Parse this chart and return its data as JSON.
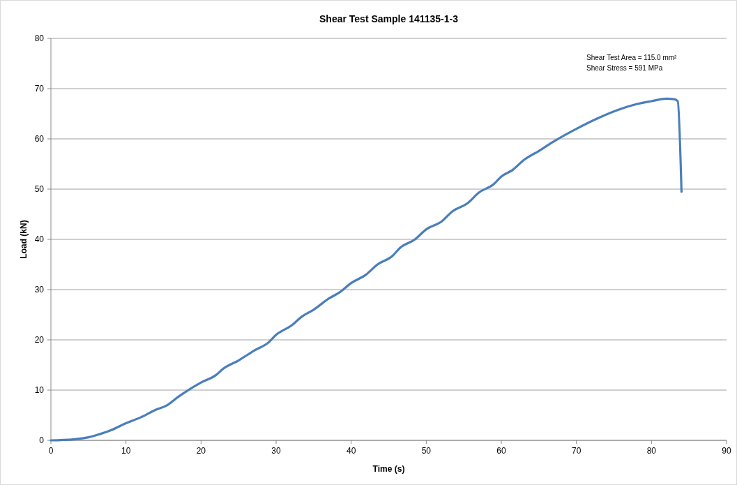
{
  "chart_data": {
    "type": "line",
    "title": "Shear Test Sample 141135-1-3",
    "xlabel": "Time (s)",
    "ylabel": "Load (kN)",
    "annotations": [
      "Shear Test Area = 115.0 mm²",
      "Shear Stress = 591 MPa"
    ],
    "xlim": [
      0,
      90
    ],
    "xticks": [
      0,
      10,
      20,
      30,
      40,
      50,
      60,
      70,
      80,
      90
    ],
    "ylim": [
      0,
      80
    ],
    "yticks": [
      0,
      10,
      20,
      30,
      40,
      50,
      60,
      70,
      80
    ],
    "grid": "y",
    "marker": "none",
    "line_style": "solid",
    "series": [
      {
        "color": "#4a7ebb",
        "x": [
          0,
          3,
          5,
          6,
          8,
          10,
          12,
          14,
          15.5,
          17,
          18,
          20,
          22,
          23,
          25,
          27,
          29,
          30,
          32,
          33.5,
          35,
          37,
          38.5,
          40,
          42,
          43.5,
          45.5,
          46.5,
          48.5,
          50,
          52,
          53.5,
          55.5,
          57,
          59,
          60,
          61.5,
          63,
          65,
          67,
          70,
          73,
          76,
          78,
          80,
          82,
          83,
          83.5,
          84
        ],
        "values": [
          0,
          0.2,
          0.6,
          1.0,
          2.0,
          3.4,
          4.6,
          6.1,
          7.0,
          8.7,
          9.7,
          11.5,
          13.0,
          14.3,
          15.9,
          17.8,
          19.5,
          21.0,
          22.8,
          24.7,
          26.0,
          28.2,
          29.5,
          31.3,
          33.0,
          35.0,
          36.7,
          38.3,
          40.0,
          42.0,
          43.5,
          45.6,
          47.2,
          49.3,
          51.0,
          52.5,
          53.8,
          55.8,
          57.6,
          59.5,
          62.0,
          64.2,
          66.0,
          66.9,
          67.5,
          68.0,
          67.9,
          67.5,
          49.5
        ]
      }
    ]
  }
}
